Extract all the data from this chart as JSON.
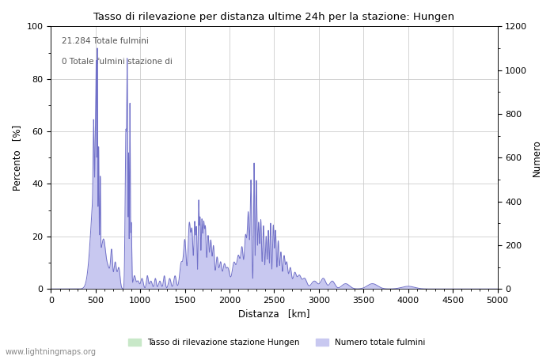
{
  "title": "Tasso di rilevazione per distanza ultime 24h per la stazione: Hungen",
  "xlabel": "Distanza   [km]",
  "ylabel_left": "Percento   [%]",
  "ylabel_right": "Numero",
  "xlim": [
    0,
    5000
  ],
  "ylim_left": [
    0,
    100
  ],
  "ylim_right": [
    0,
    1200
  ],
  "xticks": [
    0,
    500,
    1000,
    1500,
    2000,
    2500,
    3000,
    3500,
    4000,
    4500,
    5000
  ],
  "yticks_left": [
    0,
    20,
    40,
    60,
    80,
    100
  ],
  "yticks_right": [
    0,
    200,
    400,
    600,
    800,
    1000,
    1200
  ],
  "annotation_line1": "21.284 Totale fulmini",
  "annotation_line2": "0 Totale fulmini stazione di",
  "legend_green": "Tasso di rilevazione stazione Hungen",
  "legend_blue": "Numero totale fulmini",
  "fill_green_color": "#c8e8c8",
  "fill_blue_color": "#c8c8f0",
  "line_blue_color": "#7070c8",
  "website": "www.lightningmaps.org",
  "background_color": "#ffffff",
  "grid_color": "#cccccc"
}
